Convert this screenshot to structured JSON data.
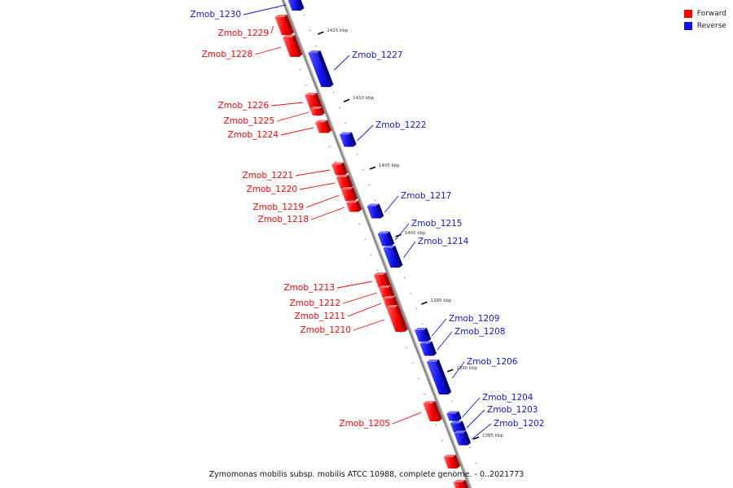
{
  "colors": {
    "forward": "#ff0000",
    "reverse": "#1111ee",
    "axis": "#888888"
  },
  "legend": [
    {
      "label": "Forward",
      "color": "#ff0000"
    },
    {
      "label": "Reverse",
      "color": "#1111ee"
    }
  ],
  "caption": "Zymomonas mobilis subsp. mobilis ATCC 10988, complete genome. - 0..2021773",
  "ticks": [
    "1415 kbp",
    "1410 kbp",
    "1405 kbp",
    "1400 kbp",
    "1395 kbp",
    "1390 kbp",
    "1385 kbp"
  ],
  "genes": [
    {
      "name": "Zmob_1230",
      "strand": "reverse"
    },
    {
      "name": "Zmob_1229",
      "strand": "forward"
    },
    {
      "name": "Zmob_1228",
      "strand": "forward"
    },
    {
      "name": "Zmob_1227",
      "strand": "reverse"
    },
    {
      "name": "Zmob_1226",
      "strand": "forward"
    },
    {
      "name": "Zmob_1225",
      "strand": "forward"
    },
    {
      "name": "Zmob_1224",
      "strand": "forward"
    },
    {
      "name": "Zmob_1222",
      "strand": "reverse"
    },
    {
      "name": "Zmob_1221",
      "strand": "forward"
    },
    {
      "name": "Zmob_1220",
      "strand": "forward"
    },
    {
      "name": "Zmob_1219",
      "strand": "forward"
    },
    {
      "name": "Zmob_1218",
      "strand": "forward"
    },
    {
      "name": "Zmob_1217",
      "strand": "reverse"
    },
    {
      "name": "Zmob_1215",
      "strand": "reverse"
    },
    {
      "name": "Zmob_1214",
      "strand": "reverse"
    },
    {
      "name": "Zmob_1213",
      "strand": "forward"
    },
    {
      "name": "Zmob_1212",
      "strand": "forward"
    },
    {
      "name": "Zmob_1211",
      "strand": "forward"
    },
    {
      "name": "Zmob_1210",
      "strand": "forward"
    },
    {
      "name": "Zmob_1209",
      "strand": "reverse"
    },
    {
      "name": "Zmob_1208",
      "strand": "reverse"
    },
    {
      "name": "Zmob_1206",
      "strand": "reverse"
    },
    {
      "name": "Zmob_1205",
      "strand": "forward"
    },
    {
      "name": "Zmob_1204",
      "strand": "reverse"
    },
    {
      "name": "Zmob_1203",
      "strand": "reverse"
    },
    {
      "name": "Zmob_1202",
      "strand": "reverse"
    }
  ]
}
